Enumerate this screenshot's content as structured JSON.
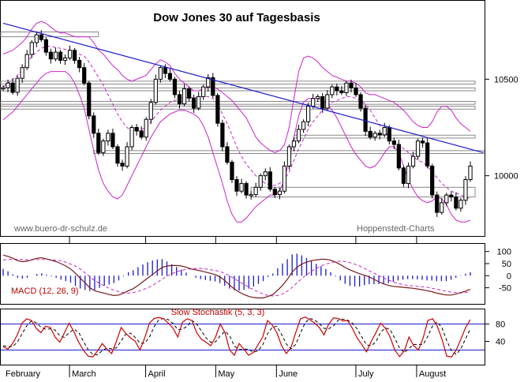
{
  "page": {
    "background": "#ffffff"
  },
  "chart_data": [
    {
      "type": "candlestick",
      "title": "Dow Jones 30 auf Tagesbasis",
      "watermark_left": "www.buero-dr-schulz.de",
      "watermark_right": "Hoppenstedt-Charts",
      "months": [
        "February",
        "March",
        "April",
        "May",
        "June",
        "July",
        "August"
      ],
      "yticks": [
        10000,
        10500
      ],
      "ylim": [
        9700,
        10890
      ],
      "close": [
        10456,
        10480,
        10432,
        10505,
        10560,
        10628,
        10690,
        10730,
        10705,
        10640,
        10605,
        10640,
        10598,
        10610,
        10650,
        10598,
        10560,
        10480,
        10310,
        10220,
        10120,
        10180,
        10220,
        10150,
        10065,
        10050,
        10150,
        10250,
        10232,
        10200,
        10292,
        10380,
        10500,
        10560,
        10530,
        10500,
        10420,
        10372,
        10450,
        10402,
        10350,
        10410,
        10460,
        10508,
        10416,
        10272,
        10150,
        10070,
        9980,
        9920,
        9960,
        9900,
        9902,
        9940,
        10000,
        10020,
        9930,
        9902,
        9920,
        10050,
        10150,
        10180,
        10240,
        10280,
        10360,
        10400,
        10410,
        10350,
        10420,
        10460,
        10440,
        10430,
        10480,
        10455,
        10420,
        10350,
        10230,
        10200,
        10220,
        10212,
        10250,
        10180,
        10162,
        10040,
        9960,
        10050,
        10100,
        10180,
        10170,
        10050,
        9900,
        9810,
        9860,
        9900,
        9890,
        9832,
        9873,
        9980,
        10050
      ],
      "ma_upper": [
        10630,
        10640,
        10650,
        10670,
        10690,
        10720,
        10760,
        10790,
        10800,
        10790,
        10770,
        10750,
        10740,
        10740,
        10730,
        10720,
        10720,
        10720,
        10720,
        10690,
        10650,
        10630,
        10600,
        10570,
        10550,
        10520,
        10500,
        10490,
        10500,
        10510,
        10520,
        10550,
        10580,
        10600,
        10590,
        10570,
        10530,
        10500,
        10480,
        10460,
        10440,
        10440,
        10450,
        10460,
        10460,
        10450,
        10430,
        10410,
        10390,
        10360,
        10330,
        10300,
        10250,
        10200,
        10170,
        10150,
        10130,
        10120,
        10130,
        10160,
        10250,
        10400,
        10540,
        10610,
        10620,
        10610,
        10590,
        10560,
        10540,
        10520,
        10510,
        10500,
        10490,
        10490,
        10480,
        10460,
        10430,
        10420,
        10420,
        10410,
        10400,
        10390,
        10380,
        10360,
        10340,
        10310,
        10280,
        10260,
        10250,
        10250,
        10280,
        10330,
        10360,
        10360,
        10340,
        10300,
        10270,
        10250,
        10230
      ],
      "ma_mid": [
        10460,
        10480,
        10500,
        10520,
        10550,
        10580,
        10620,
        10640,
        10660,
        10670,
        10670,
        10665,
        10660,
        10655,
        10650,
        10640,
        10630,
        10620,
        10590,
        10550,
        10510,
        10470,
        10420,
        10370,
        10320,
        10280,
        10250,
        10230,
        10230,
        10240,
        10250,
        10280,
        10310,
        10340,
        10360,
        10380,
        10390,
        10400,
        10405,
        10405,
        10405,
        10408,
        10410,
        10410,
        10400,
        10370,
        10320,
        10270,
        10210,
        10150,
        10100,
        10060,
        10030,
        10000,
        9980,
        9960,
        9950,
        9950,
        9960,
        9980,
        10020,
        10080,
        10140,
        10190,
        10240,
        10280,
        10310,
        10340,
        10360,
        10380,
        10390,
        10400,
        10410,
        10410,
        10400,
        10390,
        10370,
        10340,
        10300,
        10260,
        10230,
        10200,
        10180,
        10160,
        10140,
        10120,
        10100,
        10080,
        10070,
        10050,
        10020,
        9990,
        9960,
        9940,
        9920,
        9910,
        9900,
        9890,
        9880
      ],
      "ma_lower": [
        10290,
        10310,
        10330,
        10360,
        10390,
        10420,
        10450,
        10480,
        10510,
        10530,
        10540,
        10540,
        10540,
        10540,
        10520,
        10480,
        10420,
        10350,
        10240,
        10130,
        10030,
        9960,
        9920,
        9890,
        9880,
        9900,
        9950,
        10000,
        10050,
        10100,
        10150,
        10200,
        10240,
        10280,
        10300,
        10320,
        10330,
        10340,
        10340,
        10330,
        10320,
        10300,
        10260,
        10200,
        10120,
        10040,
        9960,
        9870,
        9800,
        9760,
        9760,
        9780,
        9810,
        9840,
        9860,
        9880,
        9900,
        9900,
        9920,
        9980,
        10080,
        10200,
        10310,
        10380,
        10400,
        10400,
        10400,
        10390,
        10370,
        10340,
        10300,
        10250,
        10200,
        10150,
        10110,
        10080,
        10050,
        10040,
        10050,
        10080,
        10120,
        10150,
        10150,
        10120,
        10050,
        9980,
        9930,
        9890,
        9870,
        9860,
        9870,
        9890,
        9880,
        9850,
        9800,
        9770,
        9760,
        9760,
        9770
      ],
      "trendline": {
        "from": [
          0,
          10790
        ],
        "to": [
          103,
          10120
        ]
      },
      "support_boxes": [
        {
          "x0": -1,
          "x1": 20,
          "y0": 10720,
          "y1": 10745
        },
        {
          "x0": -1,
          "x1": 99,
          "y0": 10475,
          "y1": 10490
        },
        {
          "x0": -1,
          "x1": 99,
          "y0": 10440,
          "y1": 10455
        },
        {
          "x0": -1,
          "x1": 99,
          "y0": 10370,
          "y1": 10385
        },
        {
          "x0": -1,
          "x1": 99,
          "y0": 10345,
          "y1": 10360
        },
        {
          "x0": 19,
          "x1": 103,
          "y0": 10115,
          "y1": 10130
        },
        {
          "x0": 61,
          "x1": 99,
          "y0": 10195,
          "y1": 10210
        },
        {
          "x0": 52,
          "x1": 99,
          "y0": 9890,
          "y1": 9940
        }
      ]
    },
    {
      "type": "line",
      "label": "MACD (12, 26, 9)",
      "yticks": [
        100,
        50,
        0,
        -50
      ],
      "ylim": [
        -110,
        125
      ],
      "macd": [
        85,
        80,
        72,
        62,
        58,
        60,
        66,
        72,
        74,
        70,
        64,
        58,
        50,
        40,
        28,
        10,
        -10,
        -30,
        -50,
        -62,
        -68,
        -72,
        -78,
        -82,
        -80,
        -72,
        -62,
        -54,
        -40,
        -25,
        -10,
        5,
        20,
        34,
        40,
        42,
        42,
        40,
        35,
        28,
        24,
        20,
        15,
        10,
        5,
        -5,
        -20,
        -38,
        -55,
        -68,
        -78,
        -86,
        -90,
        -92,
        -92,
        -86,
        -78,
        -60,
        -40,
        -15,
        15,
        35,
        48,
        56,
        62,
        65,
        68,
        68,
        64,
        56,
        46,
        34,
        24,
        16,
        8,
        2,
        -5,
        -15,
        -25,
        -34,
        -40,
        -44,
        -46,
        -48,
        -50,
        -52,
        -55,
        -58,
        -62,
        -66,
        -72,
        -76,
        -80,
        -80,
        -76,
        -70,
        -64,
        -56
      ],
      "signal": [
        65,
        67,
        68,
        68,
        67,
        66,
        66,
        67,
        67,
        67,
        66,
        64,
        62,
        56,
        48,
        40,
        28,
        12,
        -5,
        -20,
        -32,
        -42,
        -52,
        -60,
        -66,
        -70,
        -72,
        -70,
        -65,
        -58,
        -50,
        -40,
        -28,
        -15,
        -2,
        8,
        16,
        22,
        26,
        28,
        30,
        30,
        28,
        25,
        22,
        17,
        10,
        0,
        -12,
        -24,
        -36,
        -48,
        -58,
        -68,
        -76,
        -82,
        -84,
        -82,
        -76,
        -64,
        -48,
        -30,
        -12,
        4,
        18,
        30,
        40,
        48,
        54,
        58,
        60,
        58,
        54,
        48,
        40,
        30,
        20,
        10,
        0,
        -10,
        -18,
        -26,
        -32,
        -36,
        -40,
        -42,
        -44,
        -46,
        -48,
        -52,
        -56,
        -60,
        -64,
        -68,
        -70,
        -71,
        -70,
        -66
      ],
      "histogram_positive_color": "#1a1acc"
    },
    {
      "type": "line",
      "label": "Slow Stochastik (5, 3, 3)",
      "yticks": [
        80,
        40
      ],
      "ylim": [
        -10,
        110
      ],
      "levels": [
        80,
        20
      ],
      "k": [
        28,
        22,
        35,
        55,
        82,
        92,
        88,
        70,
        60,
        75,
        72,
        50,
        38,
        60,
        82,
        62,
        38,
        20,
        6,
        4,
        18,
        35,
        22,
        12,
        40,
        72,
        58,
        48,
        40,
        20,
        48,
        82,
        93,
        95,
        92,
        82,
        70,
        50,
        84,
        92,
        88,
        60,
        45,
        38,
        30,
        50,
        80,
        60,
        20,
        8,
        35,
        22,
        8,
        14,
        32,
        50,
        88,
        78,
        60,
        30,
        12,
        26,
        60,
        92,
        96,
        90,
        82,
        72,
        55,
        80,
        94,
        93,
        87,
        88,
        70,
        48,
        33,
        16,
        40,
        60,
        82,
        70,
        50,
        20,
        5,
        18,
        50,
        30,
        20,
        48,
        88,
        92,
        75,
        45,
        6,
        4,
        20,
        45,
        72,
        90
      ],
      "d": [
        30,
        28,
        28,
        38,
        57,
        76,
        87,
        83,
        73,
        68,
        69,
        66,
        53,
        49,
        60,
        68,
        61,
        40,
        21,
        10,
        9,
        19,
        25,
        23,
        25,
        41,
        57,
        59,
        49,
        36,
        36,
        50,
        74,
        90,
        93,
        90,
        81,
        67,
        68,
        75,
        88,
        80,
        64,
        48,
        38,
        39,
        53,
        63,
        53,
        29,
        21,
        22,
        22,
        15,
        18,
        32,
        57,
        72,
        75,
        56,
        34,
        23,
        33,
        59,
        83,
        93,
        89,
        81,
        70,
        69,
        76,
        89,
        91,
        89,
        82,
        69,
        50,
        32,
        30,
        39,
        61,
        71,
        67,
        47,
        25,
        14,
        24,
        33,
        33,
        33,
        52,
        76,
        85,
        71,
        42,
        18,
        10,
        23,
        46,
        69
      ]
    }
  ]
}
